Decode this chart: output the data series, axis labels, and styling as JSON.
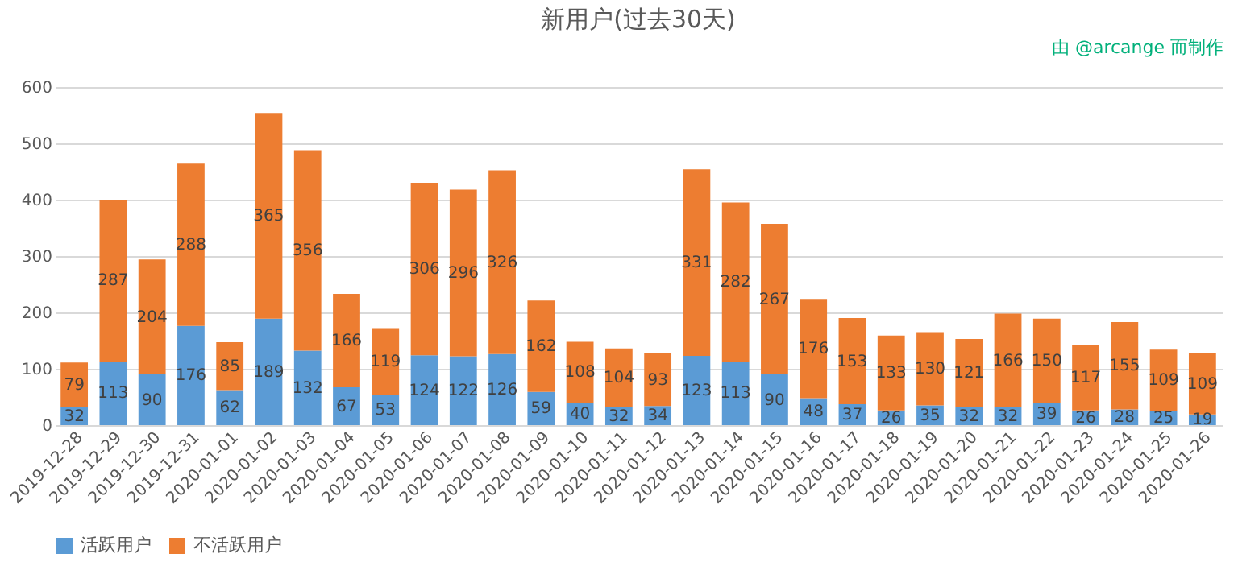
{
  "chart_data": {
    "type": "bar",
    "title": "新用户(过去30天)",
    "stacked": true,
    "data_labels": true,
    "grid": "y",
    "legend": "bottom",
    "annotations": [
      "由 @arcange 而制作"
    ],
    "categories": [
      "2019-12-28",
      "2019-12-29",
      "2019-12-30",
      "2019-12-31",
      "2020-01-01",
      "2020-01-02",
      "2020-01-03",
      "2020-01-04",
      "2020-01-05",
      "2020-01-06",
      "2020-01-07",
      "2020-01-08",
      "2020-01-09",
      "2020-01-10",
      "2020-01-11",
      "2020-01-12",
      "2020-01-13",
      "2020-01-14",
      "2020-01-15",
      "2020-01-16",
      "2020-01-17",
      "2020-01-18",
      "2020-01-19",
      "2020-01-20",
      "2020-01-21",
      "2020-01-22",
      "2020-01-23",
      "2020-01-24",
      "2020-01-25",
      "2020-01-26"
    ],
    "ylim": [
      0,
      600
    ],
    "yticks": [
      0,
      100,
      200,
      300,
      400,
      500,
      600
    ],
    "series": [
      {
        "name": "活跃用户",
        "color": "#5b9bd5",
        "values": [
          32,
          113,
          90,
          176,
          62,
          189,
          132,
          67,
          53,
          124,
          122,
          126,
          59,
          40,
          32,
          34,
          123,
          113,
          90,
          48,
          37,
          26,
          35,
          32,
          32,
          39,
          26,
          28,
          25,
          19
        ]
      },
      {
        "name": "不活跃用户",
        "color": "#ed7d31",
        "values": [
          79,
          287,
          204,
          288,
          85,
          365,
          356,
          166,
          119,
          306,
          296,
          326,
          162,
          108,
          104,
          93,
          331,
          282,
          267,
          176,
          153,
          133,
          130,
          121,
          166,
          150,
          117,
          155,
          109,
          109
        ]
      }
    ]
  }
}
